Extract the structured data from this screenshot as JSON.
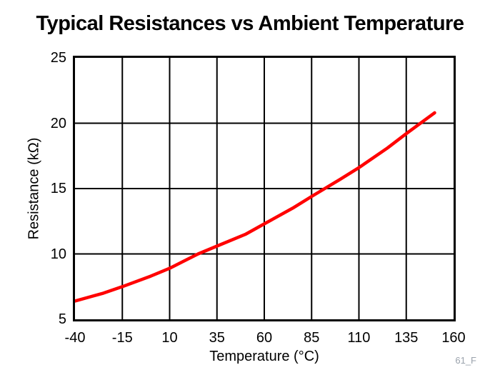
{
  "title": "Typical Resistances vs Ambient Temperature",
  "figure_label": "61_F",
  "colors": {
    "curve": "#ff0000",
    "grid": "#000000",
    "border": "#000000",
    "text": "#000000",
    "figure_label": "#9aa2ac",
    "background": "#ffffff"
  },
  "chart_data": {
    "type": "line",
    "title": "Typical Resistances vs Ambient Temperature",
    "xlabel": "Temperature (°C)",
    "ylabel": "Resistance (kΩ)",
    "xlim": [
      -40,
      160
    ],
    "ylim": [
      5,
      25
    ],
    "x_ticks": [
      -40,
      -15,
      10,
      35,
      60,
      85,
      110,
      135,
      160
    ],
    "y_ticks": [
      5,
      10,
      15,
      20,
      25
    ],
    "grid": "on",
    "legend": "none",
    "line_width": 4.5,
    "series": [
      {
        "name": "Typical resistance",
        "color": "#ff0000",
        "x": [
          -40,
          -25,
          -15,
          0,
          10,
          25,
          35,
          50,
          60,
          75,
          85,
          100,
          110,
          125,
          135,
          150
        ],
        "y": [
          6.4,
          7.0,
          7.5,
          8.3,
          8.9,
          10.0,
          10.6,
          11.5,
          12.3,
          13.5,
          14.4,
          15.7,
          16.6,
          18.1,
          19.2,
          20.8
        ]
      }
    ]
  }
}
